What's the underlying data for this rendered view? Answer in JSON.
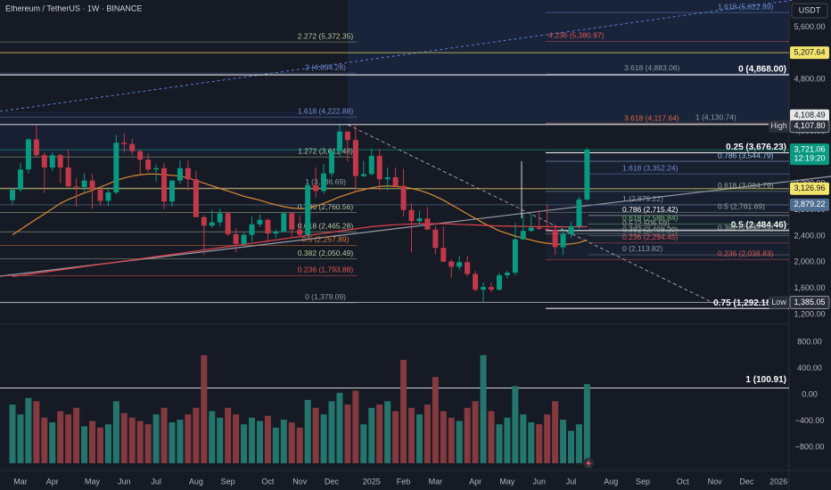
{
  "chart_data": {
    "type": "candlestick",
    "title": "Ethereum / TetherUS · 1W · BINANCE",
    "currency": "USDT",
    "up_color": "#089981",
    "down_color": "#c2384a",
    "volume_up_color": "#24756b",
    "volume_down_color": "#843a3f",
    "categories": [
      null,
      "Mar",
      null,
      null,
      null,
      "Apr",
      null,
      null,
      null,
      null,
      "May",
      null,
      null,
      null,
      "Jun",
      null,
      null,
      null,
      "Jul",
      null,
      null,
      null,
      null,
      "Aug",
      null,
      null,
      null,
      "Sep",
      null,
      null,
      null,
      null,
      "Oct",
      null,
      null,
      null,
      "Nov",
      null,
      null,
      null,
      "Dec",
      null,
      null,
      null,
      null,
      "2025",
      null,
      null,
      null,
      "Feb",
      null,
      null,
      null,
      "Mar",
      null,
      null,
      null,
      null,
      "Apr",
      null,
      null,
      null,
      "May",
      null,
      null,
      null,
      "Jun",
      null,
      null,
      null,
      "Jul",
      null,
      null,
      null,
      null,
      "Aug",
      null,
      null,
      null,
      "Sep",
      null,
      null,
      null,
      null,
      "Oct",
      null,
      null,
      null,
      "Nov",
      null,
      null,
      null,
      "Dec",
      null,
      null,
      null,
      "2026",
      null
    ],
    "ohlc": [
      [
        2950,
        3130,
        2880,
        3110
      ],
      [
        3110,
        3520,
        3080,
        3420
      ],
      [
        3420,
        3900,
        3360,
        3880
      ],
      [
        3880,
        4090,
        3600,
        3640
      ],
      [
        3640,
        3680,
        3060,
        3450
      ],
      [
        3450,
        3680,
        3400,
        3640
      ],
      [
        3640,
        3660,
        3210,
        3450
      ],
      [
        3450,
        3720,
        3150,
        3160
      ],
      [
        3160,
        3290,
        2850,
        3150
      ],
      [
        3150,
        3360,
        3080,
        3250
      ],
      [
        3250,
        3350,
        2820,
        3110
      ],
      [
        3110,
        3130,
        2870,
        2940
      ],
      [
        2940,
        3120,
        2860,
        3070
      ],
      [
        3070,
        3950,
        3040,
        3830
      ],
      [
        3830,
        3980,
        3680,
        3810
      ],
      [
        3810,
        3890,
        3640,
        3700
      ],
      [
        3700,
        3720,
        3350,
        3570
      ],
      [
        3570,
        3660,
        3380,
        3420
      ],
      [
        3420,
        3500,
        3230,
        3440
      ],
      [
        3440,
        3520,
        2810,
        2930
      ],
      [
        2930,
        3260,
        2850,
        3250
      ],
      [
        3250,
        3560,
        3200,
        3440
      ],
      [
        3440,
        3560,
        3100,
        3270
      ],
      [
        3270,
        3400,
        2690,
        2690
      ],
      [
        2690,
        2720,
        2110,
        2560
      ],
      [
        2560,
        2800,
        2530,
        2610
      ],
      [
        2610,
        2820,
        2550,
        2750
      ],
      [
        2750,
        2770,
        2400,
        2430
      ],
      [
        2430,
        2520,
        2150,
        2280
      ],
      [
        2280,
        2460,
        2270,
        2420
      ],
      [
        2420,
        2700,
        2320,
        2580
      ],
      [
        2580,
        2730,
        2540,
        2650
      ],
      [
        2650,
        2670,
        2310,
        2440
      ],
      [
        2440,
        2500,
        2370,
        2470
      ],
      [
        2470,
        2770,
        2460,
        2750
      ],
      [
        2750,
        2770,
        2390,
        2500
      ],
      [
        2500,
        2720,
        2380,
        2420
      ],
      [
        2420,
        3250,
        2360,
        3180
      ],
      [
        3180,
        3450,
        2990,
        3090
      ],
      [
        3090,
        3500,
        3050,
        3360
      ],
      [
        3360,
        3720,
        3300,
        3700
      ],
      [
        3700,
        4100,
        3620,
        4000
      ],
      [
        4000,
        4000,
        3540,
        3870
      ],
      [
        3870,
        4100,
        3100,
        3320
      ],
      [
        3320,
        3550,
        3300,
        3350
      ],
      [
        3350,
        3740,
        3330,
        3630
      ],
      [
        3630,
        3740,
        3100,
        3270
      ],
      [
        3270,
        3450,
        3100,
        3300
      ],
      [
        3300,
        3450,
        3150,
        3170
      ],
      [
        3170,
        3430,
        2700,
        2800
      ],
      [
        2800,
        2900,
        2150,
        2630
      ],
      [
        2630,
        2790,
        2550,
        2670
      ],
      [
        2670,
        2850,
        2490,
        2500
      ],
      [
        2500,
        2560,
        2120,
        2220
      ],
      [
        2220,
        2550,
        2000,
        2010
      ],
      [
        2010,
        2040,
        1760,
        1930
      ],
      [
        1930,
        2100,
        1880,
        2000
      ],
      [
        2000,
        2100,
        1780,
        1820
      ],
      [
        1820,
        1870,
        1550,
        1580
      ],
      [
        1580,
        1690,
        1385,
        1620
      ],
      [
        1620,
        1690,
        1540,
        1580
      ],
      [
        1580,
        1840,
        1560,
        1800
      ],
      [
        1800,
        1870,
        1750,
        1840
      ],
      [
        1840,
        2600,
        1800,
        2350
      ],
      [
        2350,
        2740,
        2340,
        2480
      ],
      [
        2480,
        2740,
        2460,
        2530
      ],
      [
        2530,
        2790,
        2490,
        2510
      ],
      [
        2510,
        2880,
        2480,
        2500
      ],
      [
        2500,
        2580,
        2110,
        2230
      ],
      [
        2230,
        2500,
        2110,
        2430
      ],
      [
        2430,
        2620,
        2370,
        2550
      ],
      [
        2550,
        3000,
        2500,
        2960
      ],
      [
        2960,
        3760,
        2940,
        3721.06
      ],
      null,
      null,
      null,
      null,
      null,
      null,
      null,
      null,
      null,
      null,
      null,
      null,
      null,
      null,
      null,
      null,
      null,
      null,
      null,
      null,
      null,
      null,
      null,
      null,
      null
    ],
    "ma": [
      {
        "color": "#d98a32",
        "values": [
          2420,
          2500,
          2580,
          2660,
          2740,
          2820,
          2900,
          2960,
          3010,
          3060,
          3100,
          3150,
          3200,
          3250,
          3290,
          3320,
          3340,
          3350,
          3350,
          3340,
          3330,
          3320,
          3290,
          3250,
          3210,
          3170,
          3130,
          3090,
          3050,
          3010,
          2980,
          2950,
          2910,
          2880,
          2850,
          2830,
          2820,
          2830,
          2860,
          2900,
          2950,
          3000,
          3040,
          3080,
          3110,
          3140,
          3160,
          3170,
          3160,
          3150,
          3130,
          3100,
          3060,
          3010,
          2950,
          2880,
          2810,
          2740,
          2670,
          2600,
          2540,
          2480,
          2440,
          2400,
          2370,
          2340,
          2310,
          2290,
          2280,
          2270,
          2280,
          2300,
          2340,
          null,
          null,
          null,
          null,
          null,
          null,
          null,
          null,
          null,
          null,
          null,
          null,
          null,
          null,
          null,
          null,
          null,
          null,
          null,
          null,
          null,
          null,
          null,
          null,
          null
        ]
      },
      {
        "color": "#e0424b",
        "values": [
          1780,
          1797,
          1814,
          1831,
          1848,
          1865,
          1882,
          1899,
          1916,
          1933,
          1950,
          1967,
          1984,
          2001,
          2018,
          2035,
          2052,
          2069,
          2086,
          2103,
          2120,
          2137,
          2154,
          2171,
          2188,
          2205,
          2222,
          2239,
          2256,
          2273,
          2290,
          2307,
          2324,
          2341,
          2358,
          2375,
          2392,
          2409,
          2426,
          2443,
          2460,
          2477,
          2494,
          2511,
          2528,
          2545,
          2555,
          2565,
          2575,
          2580,
          2585,
          2588,
          2590,
          2590,
          2588,
          2585,
          2580,
          2575,
          2570,
          2565,
          2560,
          2555,
          2552,
          2550,
          2548,
          2546,
          2545,
          2544,
          2543,
          2542,
          2542,
          2543,
          2545,
          null,
          null,
          null,
          null,
          null,
          null,
          null,
          null,
          null,
          null,
          null,
          null,
          null,
          null,
          null,
          null,
          null,
          null,
          null,
          null,
          null,
          null,
          null,
          null,
          null
        ]
      }
    ],
    "ylim": [
      1104,
      6015
    ],
    "yticks": [
      {
        "value": 5600,
        "label": "5,600.00"
      },
      {
        "value": 4800,
        "label": "4,800.00"
      },
      {
        "value": 4000,
        "label": "4,000.00"
      },
      {
        "value": 3200,
        "label": "3,200.00"
      },
      {
        "value": 2800,
        "label": "2,800.00"
      },
      {
        "value": 2400,
        "label": "2,400.00"
      },
      {
        "value": 2000,
        "label": "2,000.00"
      },
      {
        "value": 1600,
        "label": "1,600.00"
      },
      {
        "value": 1200,
        "label": "1,200.00"
      }
    ],
    "volume": [
      -150,
      -300,
      -50,
      -100,
      -350,
      -420,
      -250,
      -300,
      -200,
      -480,
      -400,
      -500,
      -450,
      -100,
      -280,
      -350,
      -400,
      -450,
      -300,
      -200,
      -420,
      -380,
      -300,
      -200,
      600,
      -250,
      -350,
      -200,
      -300,
      -450,
      -350,
      -400,
      -320,
      -500,
      -380,
      -420,
      -500,
      -80,
      -200,
      -300,
      -100,
      30,
      -150,
      60,
      -450,
      -200,
      -150,
      -100,
      -250,
      530,
      -200,
      -300,
      -150,
      270,
      -250,
      -350,
      -400,
      -200,
      -100,
      600,
      -250,
      -450,
      -350,
      130,
      -300,
      -420,
      -450,
      -300,
      -100,
      -380,
      -550,
      -450,
      160,
      null,
      null,
      null,
      null,
      null,
      null,
      null,
      null,
      null,
      null,
      null,
      null,
      null,
      null,
      null,
      null,
      null,
      null,
      null,
      null,
      null,
      null,
      null,
      null,
      null
    ],
    "volume_ylim": [
      -1043,
      989
    ],
    "volume_yticks": [
      {
        "value": 800,
        "label": "800.00"
      },
      {
        "value": 400,
        "label": "400.00"
      },
      {
        "value": 0,
        "label": "0.00"
      },
      {
        "value": -400,
        "label": "−400.00"
      },
      {
        "value": -800,
        "label": "−800.00"
      }
    ],
    "volume_annotation": {
      "text": "1 (100.91)",
      "value": 100.91
    },
    "annotations": [
      {
        "text": "2.272 (5,372.35)",
        "value": 5372.35,
        "color": "#b5c99a"
      },
      {
        "text": "2 (4,894.28)",
        "value": 4894.28,
        "color": "#6d8fd6"
      },
      {
        "text": "1.618 (4,222.88)",
        "value": 4222.88,
        "color": "#6d8fd6"
      },
      {
        "text": "1.272 (3,611.48)",
        "value": 3611.48,
        "color": "#b5c99a"
      },
      {
        "text": "1 (3,136.69)",
        "value": 3136.69,
        "color": "#8e9aa6"
      },
      {
        "text": "0.786 (2,760.56)",
        "value": 2760.56,
        "color": "#b5c99a"
      },
      {
        "text": "0.618 (2,465.28)",
        "value": 2465.28,
        "color": "#b5c99a"
      },
      {
        "text": "0.5 (2,257.89)",
        "value": 2257.89,
        "color": "#e07b39"
      },
      {
        "text": "0.382 (2,050.49)",
        "value": 2050.49,
        "color": "#b5c99a"
      },
      {
        "text": "0.236 (1,793.88)",
        "value": 1793.88,
        "color": "#e05555"
      },
      {
        "text": "0 (1,379.09)",
        "value": 1379.09,
        "color": "#8e9aa6"
      },
      {
        "text": "1.618 (5,822.89)",
        "value": 5822.89,
        "color": "#6d8fd6"
      },
      {
        "text": "4.236 (5,380.97)",
        "value": 5380.97,
        "color": "#e05555"
      },
      {
        "text": "3.618 (4,883.06)",
        "value": 4883.06,
        "color": "#8e9aa6"
      },
      {
        "text": "0 (4,868.00)",
        "value": 4868.0,
        "color": "#ffffff"
      },
      {
        "text": "3.618 (4,117.64)",
        "value": 4117.64,
        "color": "#e0683a"
      },
      {
        "text": "1 (4,130.74)",
        "value": 4130.74,
        "color": "#8e9aa6"
      },
      {
        "text": "0.25 (3,676.23)",
        "value": 3676.23,
        "color": "#ffffff"
      },
      {
        "text": "0.786 (3,544.79)",
        "value": 3544.79,
        "color": "#9cc4e4"
      },
      {
        "text": "1.618 (3,352.24)",
        "value": 3352.24,
        "color": "#6d8fd6"
      },
      {
        "text": "0.618 (3,084.79)",
        "value": 3084.79,
        "color": "#9aa89a"
      },
      {
        "text": "1 (2,879.22)",
        "value": 2879.22,
        "color": "#8e9aa6"
      },
      {
        "text": "0.5 (2,761.69)",
        "value": 2761.69,
        "color": "#9aa89a"
      },
      {
        "text": "0.786 (2,715.42)",
        "value": 2715.42,
        "color": "#ffffff"
      },
      {
        "text": "0.5 (2,484.46)",
        "value": 2484.46,
        "color": "#ffffff"
      },
      {
        "text": "0.618 (2,586.84)",
        "value": 2586.84,
        "color": "#6fbf73"
      },
      {
        "text": "0.5 (2,506.59)",
        "value": 2506.59,
        "color": "#9aa89a"
      },
      {
        "text": "0.382 (2,438.59)",
        "value": 2438.59,
        "color": "#9aa89a"
      },
      {
        "text": "0.382 (2,408.20)",
        "value": 2408.2,
        "color": "#9aa89a"
      },
      {
        "text": "0.236 (2,294.45)",
        "value": 2294.45,
        "color": "#e05555"
      },
      {
        "text": "0 (2,113.82)",
        "value": 2113.82,
        "color": "#8e9aa6"
      },
      {
        "text": "0.236 (2,038.83)",
        "value": 2038.83,
        "color": "#e05555"
      },
      {
        "text": "0.75 (1,292.18)",
        "value": 1292.18,
        "color": "#ffffff"
      }
    ],
    "price_labels": [
      {
        "value": 5207.64,
        "label": "5,207.64",
        "bg": "#f2e46b",
        "fg": "#131722"
      },
      {
        "value": 4108.49,
        "label": "4,108.49",
        "bg": "#e6e6e6",
        "fg": "#131722"
      },
      {
        "value": 4107.8,
        "label": "4,107.80",
        "bg": "#2a2e39",
        "fg": "#ffffff"
      },
      {
        "value": 3721.06,
        "label": "3,721.06",
        "bg": "#089981",
        "fg": "#ffffff"
      },
      {
        "value": 3126.96,
        "label": "3,126.96",
        "bg": "#f2e46b",
        "fg": "#131722"
      },
      {
        "value": 2879.22,
        "label": "2,879.22",
        "bg": "#4f6d8f",
        "fg": "#ffffff"
      },
      {
        "value": 1385.05,
        "label": "1,385.05",
        "bg": "#2a2e39",
        "fg": "#ffffff"
      }
    ],
    "countdown": "12:19:20",
    "high_tag": "High",
    "low_tag": "Low"
  }
}
